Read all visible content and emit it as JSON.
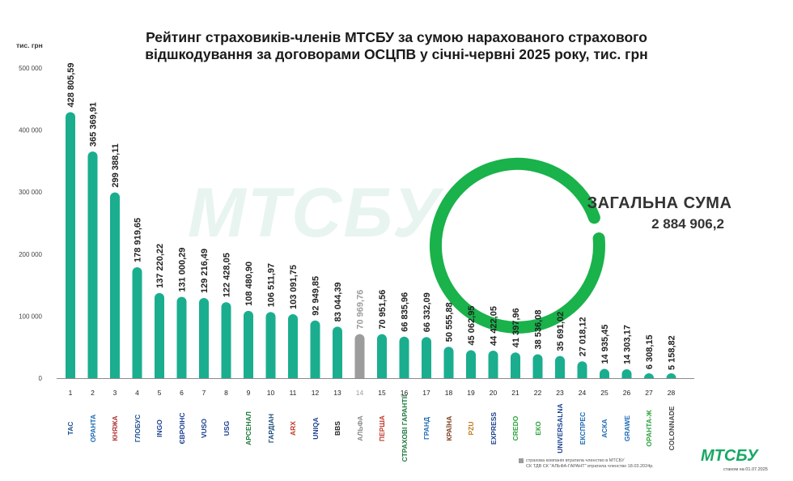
{
  "title_line1": "Рейтинг страховиків-членів МТСБУ за сумою нарахованого страхового",
  "title_line2": "відшкодування за договорами ОСЦПВ у січні-червні 2025 року, тис. грн",
  "total_label": "ЗАГАЛЬНА СУМА",
  "total_value": "2 884 906,2",
  "watermark": "МТСБУ",
  "brand": "МТСБУ",
  "date_note": "станом на 01.07.2025",
  "legend_note_line1": "страхова компанія втратила членство в МТСБУ",
  "legend_note_line2": "СК ТДВ СК \"АЛЬФА-ГАРАНТ\" втратила членство 18.03.2024р.",
  "colors": {
    "bar": "#1aae8f",
    "bar_inactive": "#9c9c9c",
    "ring": "#19b24b"
  },
  "logos": [
    {
      "text": "ТАС",
      "color": "#1b4f8f"
    },
    {
      "text": "ОРАНТА",
      "color": "#1b6bb3"
    },
    {
      "text": "КНЯЖА",
      "color": "#b03030"
    },
    {
      "text": "ГЛОБУС",
      "color": "#1b4f8f"
    },
    {
      "text": "INGO",
      "color": "#1b3f8f"
    },
    {
      "text": "ЄВРОІНС",
      "color": "#1b3f8f"
    },
    {
      "text": "VUSO",
      "color": "#1b3f8f"
    },
    {
      "text": "USG",
      "color": "#1b3f8f"
    },
    {
      "text": "АРСЕНАЛ",
      "color": "#1a7a3a"
    },
    {
      "text": "ГАРДІАН",
      "color": "#1a4a7a"
    },
    {
      "text": "ARX",
      "color": "#c0392b"
    },
    {
      "text": "UNIQA",
      "color": "#1b3f8f"
    },
    {
      "text": "BBS",
      "color": "#222222"
    },
    {
      "text": "АЛЬФА",
      "color": "#8a8a8a"
    },
    {
      "text": "ПЕРША",
      "color": "#c0392b"
    },
    {
      "text": "СТРАХОВІ ГАРАНТІЇ",
      "color": "#1a7a3a"
    },
    {
      "text": "ГРАНД",
      "color": "#1b6bb3"
    },
    {
      "text": "КРАЇНА",
      "color": "#7a3a1a"
    },
    {
      "text": "PZU",
      "color": "#c07a1a"
    },
    {
      "text": "EXPRESS",
      "color": "#1b3f8f"
    },
    {
      "text": "CREDO",
      "color": "#2aa13a"
    },
    {
      "text": "ЕКО",
      "color": "#2aa13a"
    },
    {
      "text": "UNIVERSALNA",
      "color": "#1b3f8f"
    },
    {
      "text": "ЕКСПРЕС",
      "color": "#1b6bb3"
    },
    {
      "text": "АСКА",
      "color": "#1b6bb3"
    },
    {
      "text": "GRAWE",
      "color": "#1b6bb3"
    },
    {
      "text": "ОРАНТА-Ж",
      "color": "#2aa13a"
    },
    {
      "text": "COLONNADE",
      "color": "#444444"
    }
  ],
  "chart_data": {
    "type": "bar",
    "ylabel": "тис. грн",
    "ylim": [
      0,
      500000
    ],
    "yticks": [
      {
        "v": 0,
        "label": "0"
      },
      {
        "v": 100000,
        "label": "100 000"
      },
      {
        "v": 200000,
        "label": "200 000"
      },
      {
        "v": 300000,
        "label": "300 000"
      },
      {
        "v": 400000,
        "label": "400 000"
      },
      {
        "v": 500000,
        "label": "500 000"
      }
    ],
    "categories": [
      "1",
      "2",
      "3",
      "4",
      "5",
      "6",
      "7",
      "8",
      "9",
      "10",
      "11",
      "12",
      "13",
      "14",
      "15",
      "16",
      "17",
      "18",
      "19",
      "20",
      "21",
      "22",
      "23",
      "24",
      "25",
      "26",
      "27",
      "28"
    ],
    "values": [
      428805.59,
      365369.91,
      299388.11,
      178919.65,
      137220.22,
      131000.29,
      129216.49,
      122428.05,
      108480.9,
      106511.97,
      103091.75,
      92949.85,
      83044.39,
      70969.76,
      70951.56,
      66835.96,
      66332.09,
      50555.88,
      45062.95,
      44422.05,
      41397.96,
      38536.08,
      35691.02,
      27018.12,
      14935.45,
      14303.17,
      6308.15,
      5158.82
    ],
    "value_labels": [
      "428 805,59",
      "365 369,91",
      "299 388,11",
      "178 919,65",
      "137 220,22",
      "131 000,29",
      "129 216,49",
      "122 428,05",
      "108 480,90",
      "106 511,97",
      "103 091,75",
      "92 949,85",
      "83 044,39",
      "70 969,76",
      "70 951,56",
      "66 835,96",
      "66 332,09",
      "50 555,88",
      "45 062,95",
      "44 422,05",
      "41 397,96",
      "38 536,08",
      "35 691,02",
      "27 018,12",
      "14 935,45",
      "14 303,17",
      "6 308,15",
      "5 158,82"
    ],
    "inactive": [
      14
    ]
  }
}
